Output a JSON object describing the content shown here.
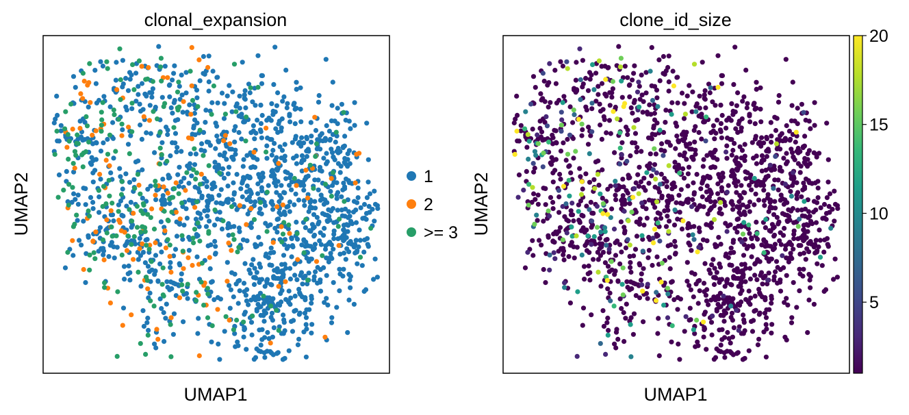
{
  "chart_data": [
    {
      "type": "scatter",
      "title": "clonal_expansion",
      "xlabel": "UMAP1",
      "ylabel": "UMAP2",
      "legend": {
        "placement": "right",
        "entries": [
          {
            "label": "1",
            "color": "#1f77b4"
          },
          {
            "label": "2",
            "color": "#ff7f0e"
          },
          {
            "label": ">= 3",
            "color": "#279e68"
          }
        ]
      },
      "grid": false,
      "axis_ticks": false,
      "n_points_approx": 1900,
      "category_fractions": {
        "1": 0.8,
        "2": 0.06,
        ">= 3": 0.14
      }
    },
    {
      "type": "scatter",
      "title": "clone_id_size",
      "xlabel": "UMAP1",
      "ylabel": "UMAP2",
      "colorbar": {
        "colormap": "viridis",
        "range": [
          1,
          20
        ],
        "ticks": [
          "5",
          "10",
          "15",
          "20"
        ],
        "tick_values": [
          5,
          10,
          15,
          20
        ]
      },
      "grid": false,
      "axis_ticks": false
    }
  ],
  "colors": {
    "cat1": "#1f77b4",
    "cat2": "#ff7f0e",
    "cat3": "#279e68",
    "viridis": [
      "#440154",
      "#482878",
      "#3e4989",
      "#31688e",
      "#26828e",
      "#1f9e89",
      "#35b779",
      "#6ece58",
      "#b5de2b",
      "#fde725"
    ]
  }
}
